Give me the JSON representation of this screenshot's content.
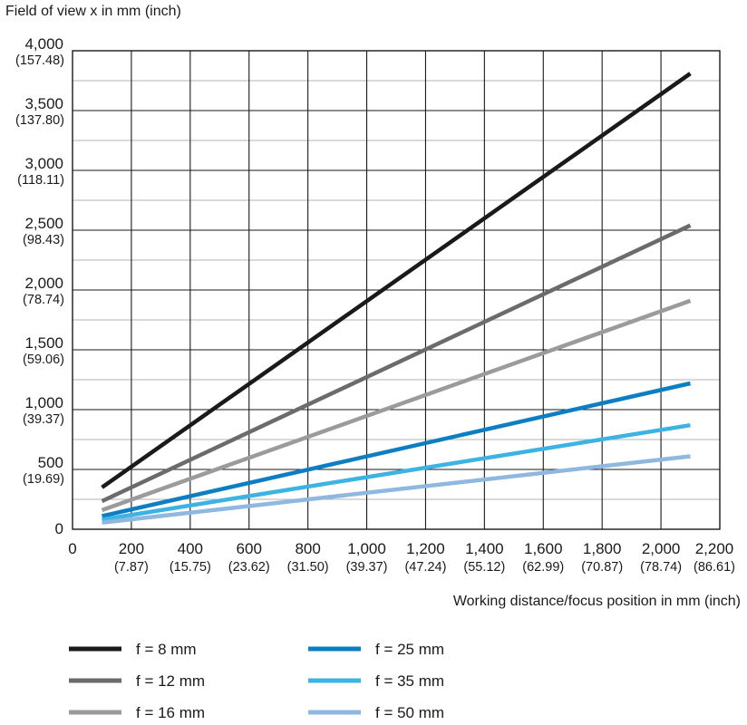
{
  "chart_data": {
    "type": "line",
    "ylabel": "Field of view x in mm (inch)",
    "xlabel": "Working distance/focus position in mm (inch)",
    "xlim": [
      0,
      2200
    ],
    "ylim": [
      0,
      4000
    ],
    "grid": true,
    "legend_position": "bottom",
    "x_ticks": [
      {
        "value": 0,
        "label": "0",
        "sub": ""
      },
      {
        "value": 200,
        "label": "200",
        "sub": "(7.87)"
      },
      {
        "value": 400,
        "label": "400",
        "sub": "(15.75)"
      },
      {
        "value": 600,
        "label": "600",
        "sub": "(23.62)"
      },
      {
        "value": 800,
        "label": "800",
        "sub": "(31.50)"
      },
      {
        "value": 1000,
        "label": "1,000",
        "sub": "(39.37)"
      },
      {
        "value": 1200,
        "label": "1,200",
        "sub": "(47.24)"
      },
      {
        "value": 1400,
        "label": "1,400",
        "sub": "(55.12)"
      },
      {
        "value": 1600,
        "label": "1,600",
        "sub": "(62.99)"
      },
      {
        "value": 1800,
        "label": "1,800",
        "sub": "(70.87)"
      },
      {
        "value": 2000,
        "label": "2,000",
        "sub": "(78.74)"
      },
      {
        "value": 2200,
        "label": "2,200",
        "sub": "(86.61)"
      }
    ],
    "y_ticks": [
      {
        "value": 0,
        "label": "0",
        "sub": ""
      },
      {
        "value": 500,
        "label": "500",
        "sub": "(19.69)"
      },
      {
        "value": 1000,
        "label": "1,000",
        "sub": "(39.37)"
      },
      {
        "value": 1500,
        "label": "1,500",
        "sub": "(59.06)"
      },
      {
        "value": 2000,
        "label": "2,000",
        "sub": "(78.74)"
      },
      {
        "value": 2500,
        "label": "2,500",
        "sub": "(98.43)"
      },
      {
        "value": 3000,
        "label": "3,000",
        "sub": "(118.11)"
      },
      {
        "value": 3500,
        "label": "3,500",
        "sub": "(137.80)"
      },
      {
        "value": 4000,
        "label": "4,000",
        "sub": "(157.48)"
      }
    ],
    "y_minor_step": 250,
    "series": [
      {
        "name": "f = 8 mm",
        "color": "#1a1a1a",
        "x": [
          100,
          2100
        ],
        "y": [
          350,
          3810
        ]
      },
      {
        "name": "f = 12 mm",
        "color": "#6b6b6d",
        "x": [
          100,
          2100
        ],
        "y": [
          235,
          2540
        ]
      },
      {
        "name": "f = 16 mm",
        "color": "#9b9b9e",
        "x": [
          100,
          2100
        ],
        "y": [
          160,
          1910
        ]
      },
      {
        "name": "f = 25 mm",
        "color": "#0d7ec2",
        "x": [
          100,
          2100
        ],
        "y": [
          110,
          1220
        ]
      },
      {
        "name": "f = 35 mm",
        "color": "#3db3e3",
        "x": [
          100,
          2100
        ],
        "y": [
          80,
          870
        ]
      },
      {
        "name": "f = 50 mm",
        "color": "#8fb8e1",
        "x": [
          100,
          2100
        ],
        "y": [
          55,
          610
        ]
      }
    ]
  }
}
